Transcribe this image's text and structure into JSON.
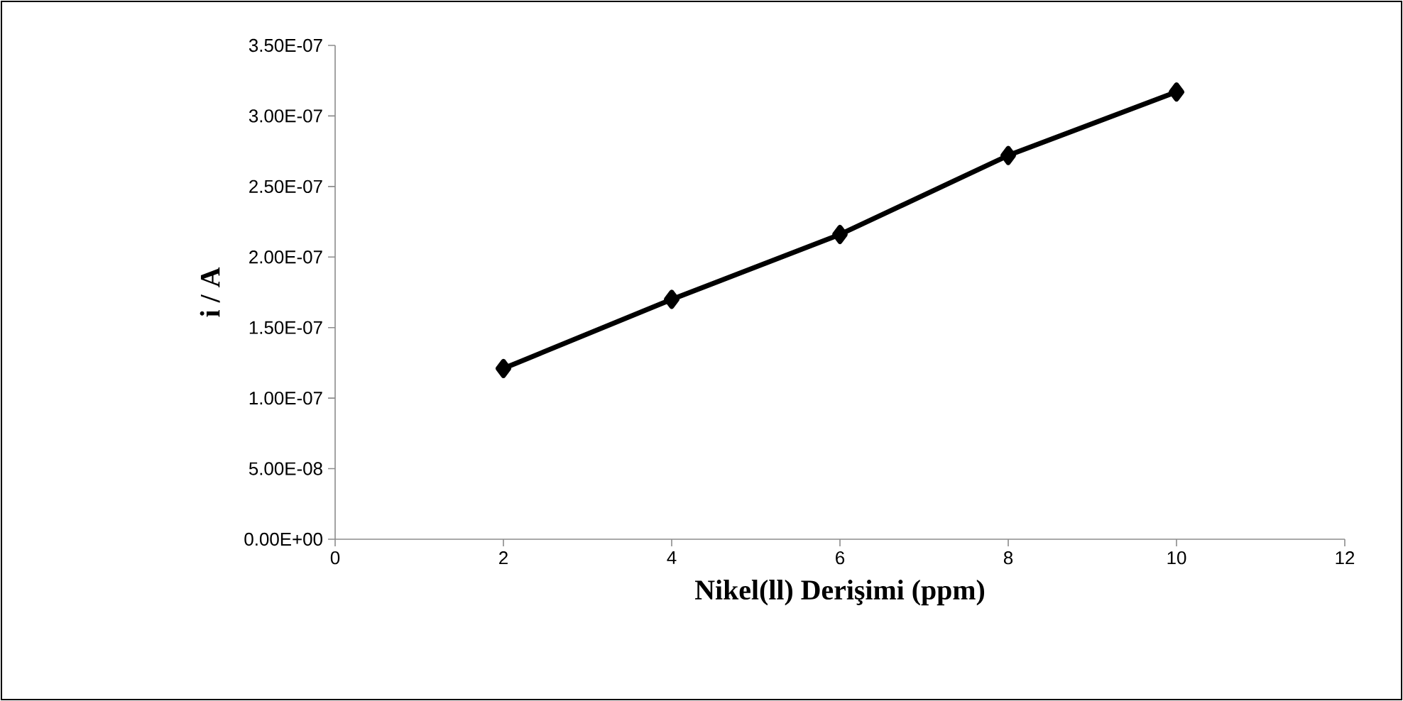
{
  "chart_data": {
    "type": "line",
    "xlabel": "Nikel(ll) Derişimi (ppm)",
    "ylabel": "i / A",
    "x": [
      2,
      4,
      6,
      8,
      10
    ],
    "series": [
      {
        "color": "#000000",
        "values": [
          1.21e-07,
          1.7e-07,
          2.16e-07,
          2.72e-07,
          3.17e-07
        ]
      }
    ],
    "xlim": [
      0,
      12
    ],
    "xticks": [
      0,
      2,
      4,
      6,
      8,
      10,
      12
    ],
    "ylim": [
      0,
      3.5e-07
    ],
    "yticks": [
      {
        "value": 0,
        "label": "0.00E+00"
      },
      {
        "value": 5e-08,
        "label": "5.00E-08"
      },
      {
        "value": 1e-07,
        "label": "1.00E-07"
      },
      {
        "value": 1.5e-07,
        "label": "1.50E-07"
      },
      {
        "value": 2e-07,
        "label": "2.00E-07"
      },
      {
        "value": 2.5e-07,
        "label": "2.50E-07"
      },
      {
        "value": 3e-07,
        "label": "3.00E-07"
      },
      {
        "value": 3.5e-07,
        "label": "3.50E-07"
      }
    ],
    "marker": "diamond",
    "line_style": "solid",
    "grid": false
  }
}
